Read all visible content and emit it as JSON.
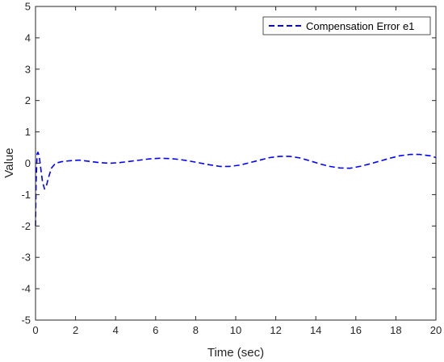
{
  "chart_data": {
    "type": "line",
    "xlabel": "Time (sec)",
    "ylabel": "Value",
    "xlim": [
      0,
      20
    ],
    "ylim": [
      -5,
      5
    ],
    "xticks": [
      0,
      2,
      4,
      6,
      8,
      10,
      12,
      14,
      16,
      18,
      20
    ],
    "yticks": [
      5,
      4,
      3,
      2,
      1,
      0,
      -1,
      -2,
      -3,
      -4,
      -5
    ],
    "xtick_labels": [
      "0",
      "2",
      "4",
      "6",
      "8",
      "10",
      "12",
      "14",
      "16",
      "18",
      "20"
    ],
    "ytick_labels": [
      "5",
      "4",
      "3",
      "2",
      "1",
      "0",
      "-1",
      "-2",
      "-3",
      "-4",
      "-5"
    ],
    "grid": false,
    "legend": {
      "position": "top-right"
    },
    "series": [
      {
        "name": "Compensation Error e1",
        "color": "#0000ff",
        "line_style": "dashed",
        "x": [
          0,
          0.03,
          0.08,
          0.12,
          0.18,
          0.25,
          0.35,
          0.45,
          0.55,
          0.65,
          0.8,
          1.0,
          1.3,
          1.7,
          2.2,
          2.7,
          3.2,
          3.7,
          4.2,
          4.7,
          5.2,
          5.7,
          6.2,
          6.7,
          7.2,
          7.7,
          8.2,
          8.7,
          9.2,
          9.7,
          10.2,
          10.7,
          11.2,
          11.7,
          12.2,
          12.7,
          13.2,
          13.7,
          14.2,
          14.7,
          15.2,
          15.7,
          16.2,
          16.7,
          17.2,
          17.7,
          18.2,
          18.7,
          19.2,
          19.7,
          20.0
        ],
        "y": [
          -2.0,
          -0.6,
          0.3,
          0.35,
          0.25,
          -0.1,
          -0.6,
          -0.82,
          -0.7,
          -0.45,
          -0.15,
          0.0,
          0.05,
          0.08,
          0.1,
          0.06,
          0.02,
          0.0,
          0.02,
          0.06,
          0.1,
          0.14,
          0.16,
          0.15,
          0.12,
          0.07,
          0.01,
          -0.05,
          -0.1,
          -0.1,
          -0.06,
          0.02,
          0.1,
          0.18,
          0.22,
          0.22,
          0.17,
          0.08,
          -0.02,
          -0.1,
          -0.15,
          -0.16,
          -0.1,
          -0.02,
          0.07,
          0.16,
          0.24,
          0.28,
          0.28,
          0.24,
          0.18
        ]
      }
    ]
  }
}
